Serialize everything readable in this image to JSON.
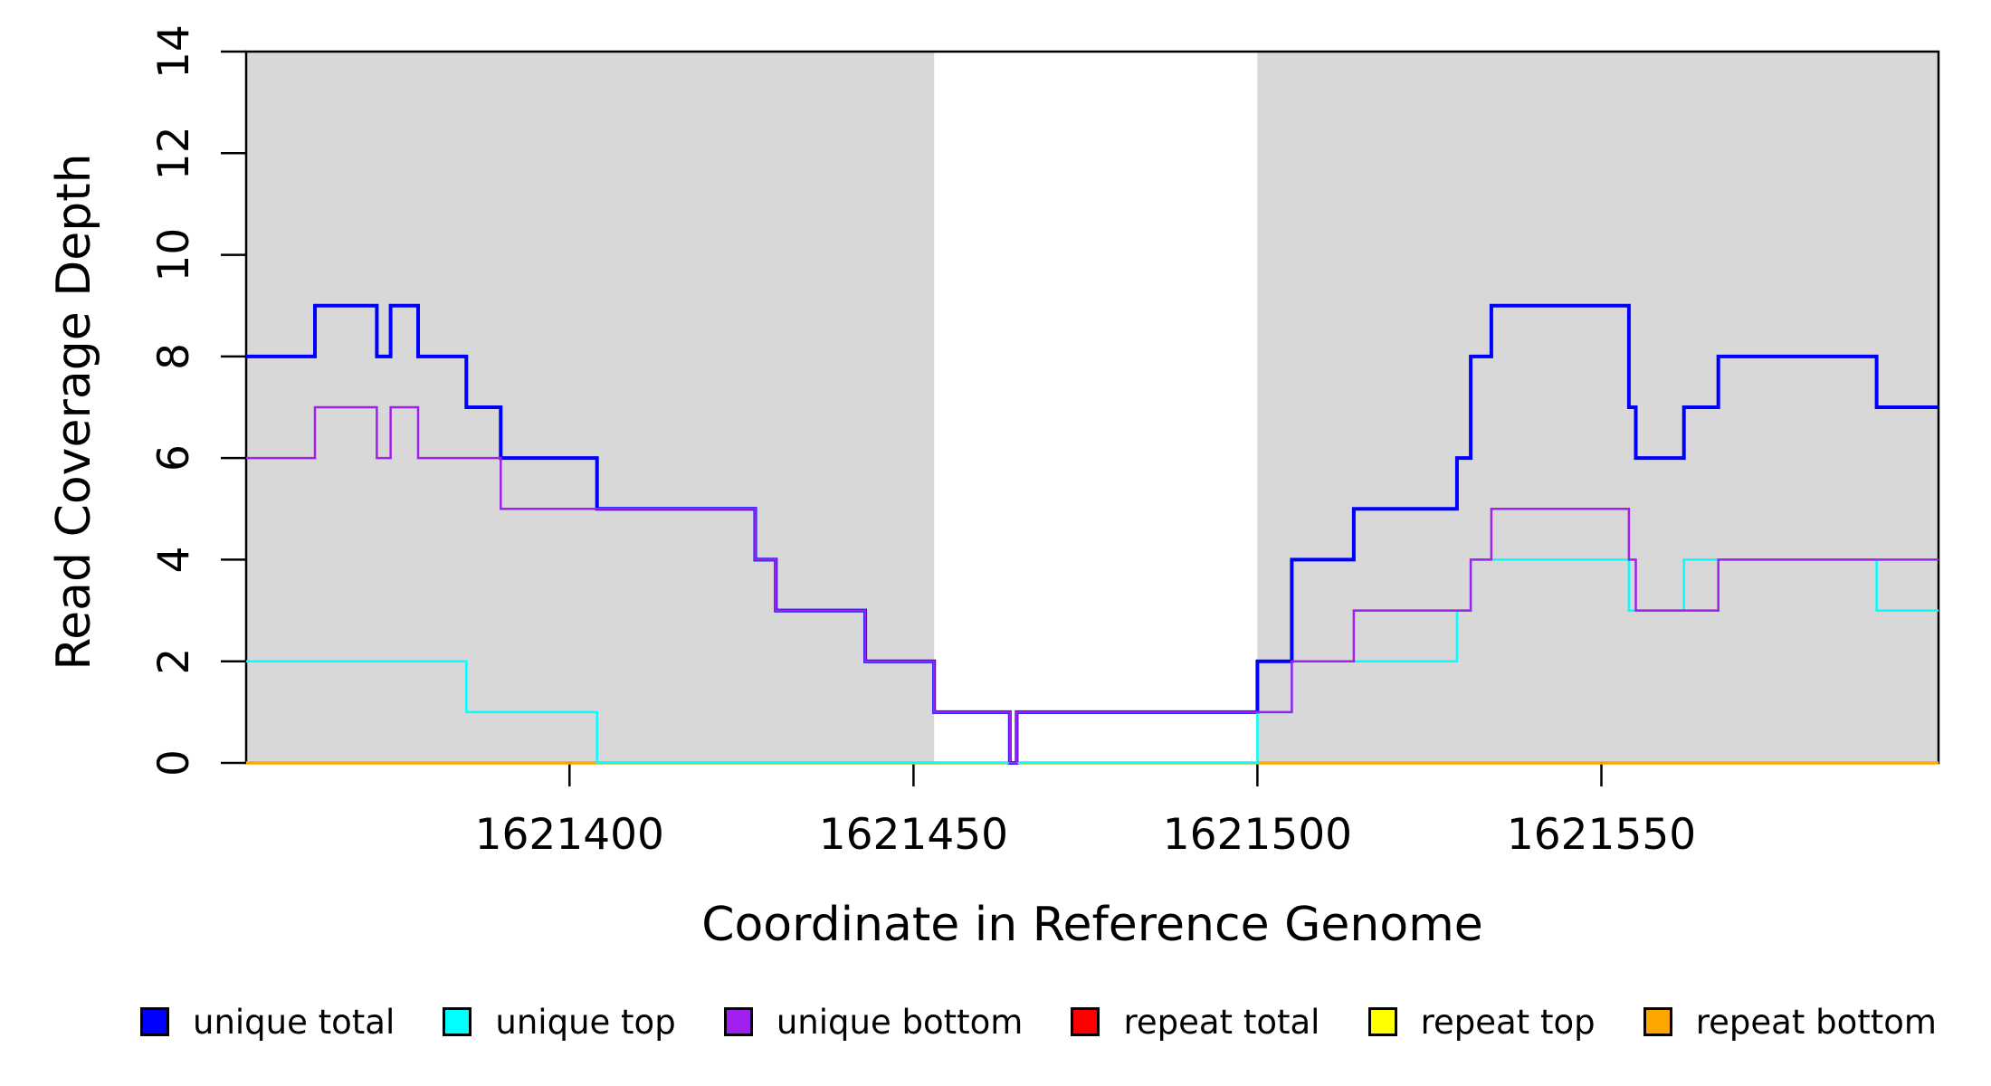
{
  "chart_data": {
    "type": "line",
    "subtype": "step",
    "title": "",
    "xlabel": "Coordinate in Reference Genome",
    "ylabel": "Read Coverage Depth",
    "xlim": [
      1621353,
      1621599
    ],
    "ylim": [
      0,
      14
    ],
    "x_ticks": [
      1621400,
      1621450,
      1621500,
      1621550
    ],
    "y_ticks": [
      0,
      2,
      4,
      6,
      8,
      10,
      12,
      14
    ],
    "grid": false,
    "background_color": "#ffffff",
    "shaded_region_color": "#d8d8d8",
    "shaded_regions": [
      {
        "from": 1621353,
        "to": 1621453
      },
      {
        "from": 1621500,
        "to": 1621599
      }
    ],
    "series": [
      {
        "name": "repeat total",
        "color": "#FF0000",
        "width": 3,
        "steps": [
          [
            1621353,
            0
          ]
        ]
      },
      {
        "name": "repeat top",
        "color": "#FFFF00",
        "width": 3,
        "steps": [
          [
            1621353,
            0
          ]
        ]
      },
      {
        "name": "repeat bottom",
        "color": "#FFA500",
        "width": 3.5,
        "steps": [
          [
            1621353,
            0
          ]
        ]
      },
      {
        "name": "unique total",
        "color": "#0000FF",
        "width": 4,
        "steps": [
          [
            1621353,
            8
          ],
          [
            1621363,
            9
          ],
          [
            1621372,
            8
          ],
          [
            1621374,
            9
          ],
          [
            1621378,
            8
          ],
          [
            1621385,
            7
          ],
          [
            1621390,
            6
          ],
          [
            1621404,
            5
          ],
          [
            1621427,
            4
          ],
          [
            1621430,
            3
          ],
          [
            1621443,
            2
          ],
          [
            1621453,
            1
          ],
          [
            1621464,
            0
          ],
          [
            1621465,
            1
          ],
          [
            1621500,
            2
          ],
          [
            1621505,
            4
          ],
          [
            1621514,
            5
          ],
          [
            1621529,
            6
          ],
          [
            1621531,
            8
          ],
          [
            1621534,
            9
          ],
          [
            1621554,
            7
          ],
          [
            1621555,
            6
          ],
          [
            1621562,
            7
          ],
          [
            1621567,
            8
          ],
          [
            1621590,
            7
          ]
        ]
      },
      {
        "name": "unique top",
        "color": "#00FFFF",
        "width": 2.5,
        "steps": [
          [
            1621353,
            2
          ],
          [
            1621385,
            1
          ],
          [
            1621404,
            0
          ],
          [
            1621500,
            1
          ],
          [
            1621505,
            2
          ],
          [
            1621529,
            3
          ],
          [
            1621531,
            4
          ],
          [
            1621554,
            3
          ],
          [
            1621562,
            4
          ],
          [
            1621590,
            3
          ]
        ]
      },
      {
        "name": "unique bottom",
        "color": "#A020F0",
        "width": 2.5,
        "steps": [
          [
            1621353,
            6
          ],
          [
            1621363,
            7
          ],
          [
            1621372,
            6
          ],
          [
            1621374,
            7
          ],
          [
            1621378,
            6
          ],
          [
            1621390,
            5
          ],
          [
            1621427,
            4
          ],
          [
            1621430,
            3
          ],
          [
            1621443,
            2
          ],
          [
            1621453,
            1
          ],
          [
            1621464,
            0
          ],
          [
            1621465,
            1
          ],
          [
            1621505,
            2
          ],
          [
            1621514,
            3
          ],
          [
            1621531,
            4
          ],
          [
            1621534,
            5
          ],
          [
            1621554,
            4
          ],
          [
            1621555,
            3
          ],
          [
            1621567,
            4
          ]
        ]
      }
    ],
    "legend": {
      "position": "bottom",
      "entries": [
        {
          "label": "unique total",
          "color": "#0000FF"
        },
        {
          "label": "unique top",
          "color": "#00FFFF"
        },
        {
          "label": "unique bottom",
          "color": "#A020F0"
        },
        {
          "label": "repeat total",
          "color": "#FF0000"
        },
        {
          "label": "repeat top",
          "color": "#FFFF00"
        },
        {
          "label": "repeat bottom",
          "color": "#FFA500"
        }
      ]
    }
  }
}
